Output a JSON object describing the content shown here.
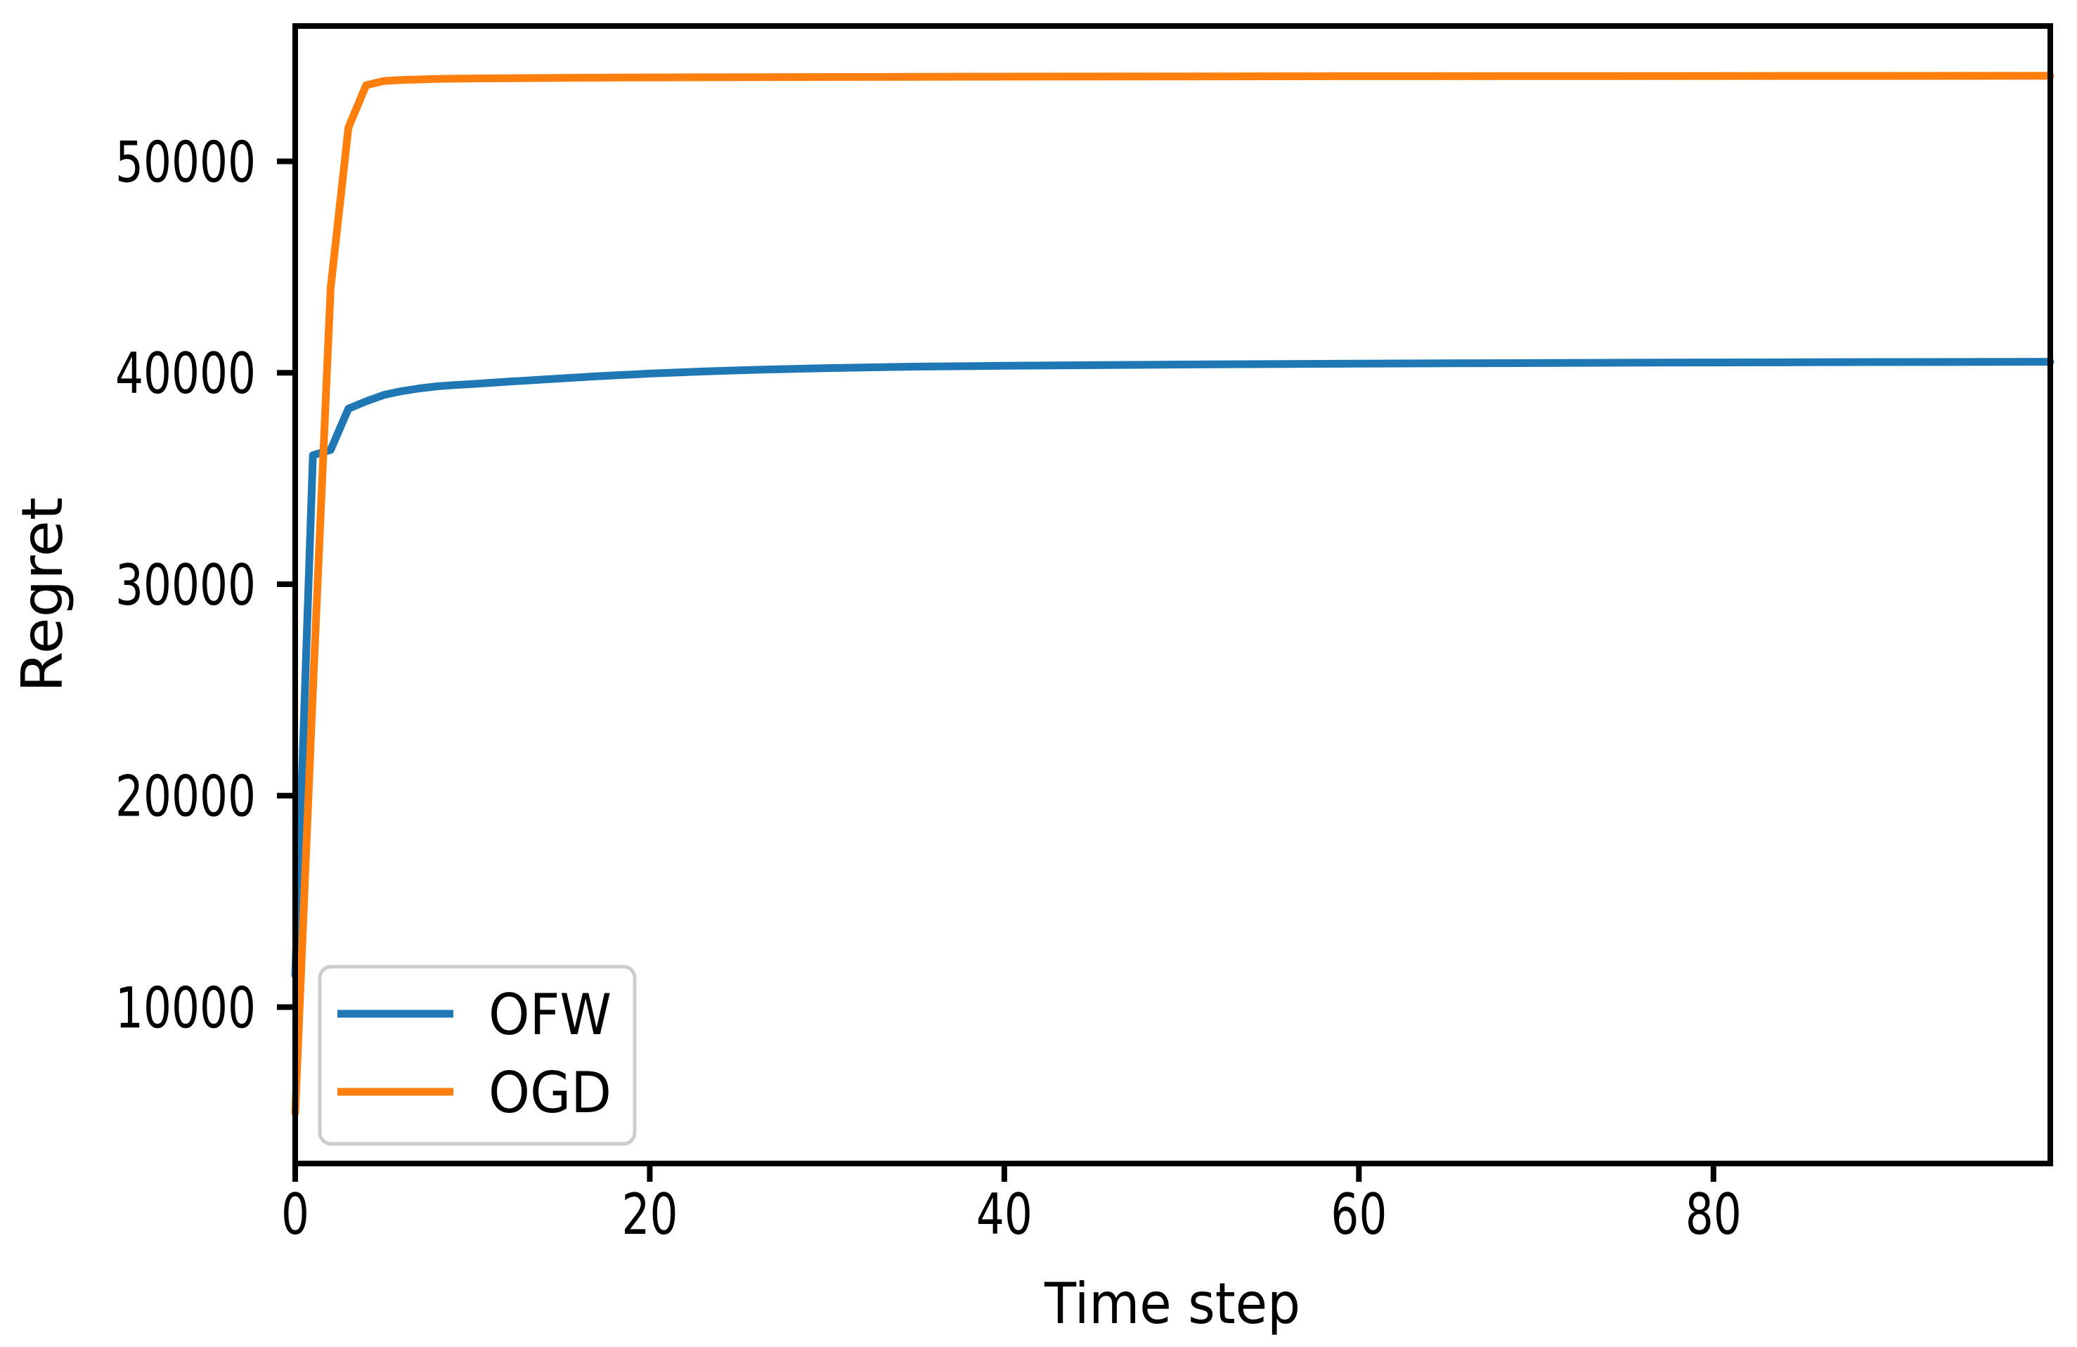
{
  "figure": {
    "background": "#ffffff"
  },
  "chart_data": {
    "type": "line",
    "title": "",
    "xlabel": "Time step",
    "ylabel": "Regret",
    "xlim": [
      0,
      99
    ],
    "ylim": [
      2600,
      56400
    ],
    "x_ticks": [
      0,
      20,
      40,
      60,
      80
    ],
    "y_ticks": [
      10000,
      20000,
      30000,
      40000,
      50000
    ],
    "grid": false,
    "legend_position": "lower left",
    "series": [
      {
        "name": "OFW",
        "color": "#1f77b4",
        "x": [
          0,
          1,
          2,
          3,
          4,
          5,
          6,
          7,
          8,
          9,
          10,
          12,
          15,
          17,
          20,
          23,
          26,
          30,
          35,
          40,
          45,
          50,
          55,
          60,
          65,
          70,
          75,
          80,
          85,
          90,
          95,
          99
        ],
        "y": [
          11500,
          36100,
          36350,
          38300,
          38650,
          38950,
          39130,
          39260,
          39360,
          39420,
          39470,
          39580,
          39730,
          39830,
          39960,
          40060,
          40140,
          40220,
          40290,
          40330,
          40360,
          40390,
          40410,
          40430,
          40450,
          40460,
          40475,
          40485,
          40495,
          40505,
          40512,
          40520
        ]
      },
      {
        "name": "OGD",
        "color": "#ff7f0e",
        "x": [
          0,
          1,
          2,
          3,
          4,
          5,
          6,
          8,
          10,
          15,
          20,
          30,
          40,
          50,
          60,
          70,
          80,
          90,
          99
        ],
        "y": [
          5000,
          25000,
          44000,
          51600,
          53600,
          53800,
          53850,
          53900,
          53920,
          53950,
          53970,
          53990,
          54005,
          54015,
          54025,
          54030,
          54035,
          54040,
          54045
        ]
      }
    ]
  },
  "axes": {
    "xlabel": "Time step",
    "ylabel": "Regret",
    "x_tick_labels": [
      "0",
      "20",
      "40",
      "60",
      "80"
    ],
    "y_tick_labels": [
      "10000",
      "20000",
      "30000",
      "40000",
      "50000"
    ]
  },
  "legend": {
    "items": [
      {
        "label": "OFW",
        "color": "#1f77b4"
      },
      {
        "label": "OGD",
        "color": "#ff7f0e"
      }
    ]
  },
  "colors": {
    "spine": "#000000",
    "tick": "#000000",
    "text": "#000000",
    "legend_border": "#cccccc",
    "legend_background": "#ffffff",
    "background": "#ffffff"
  }
}
